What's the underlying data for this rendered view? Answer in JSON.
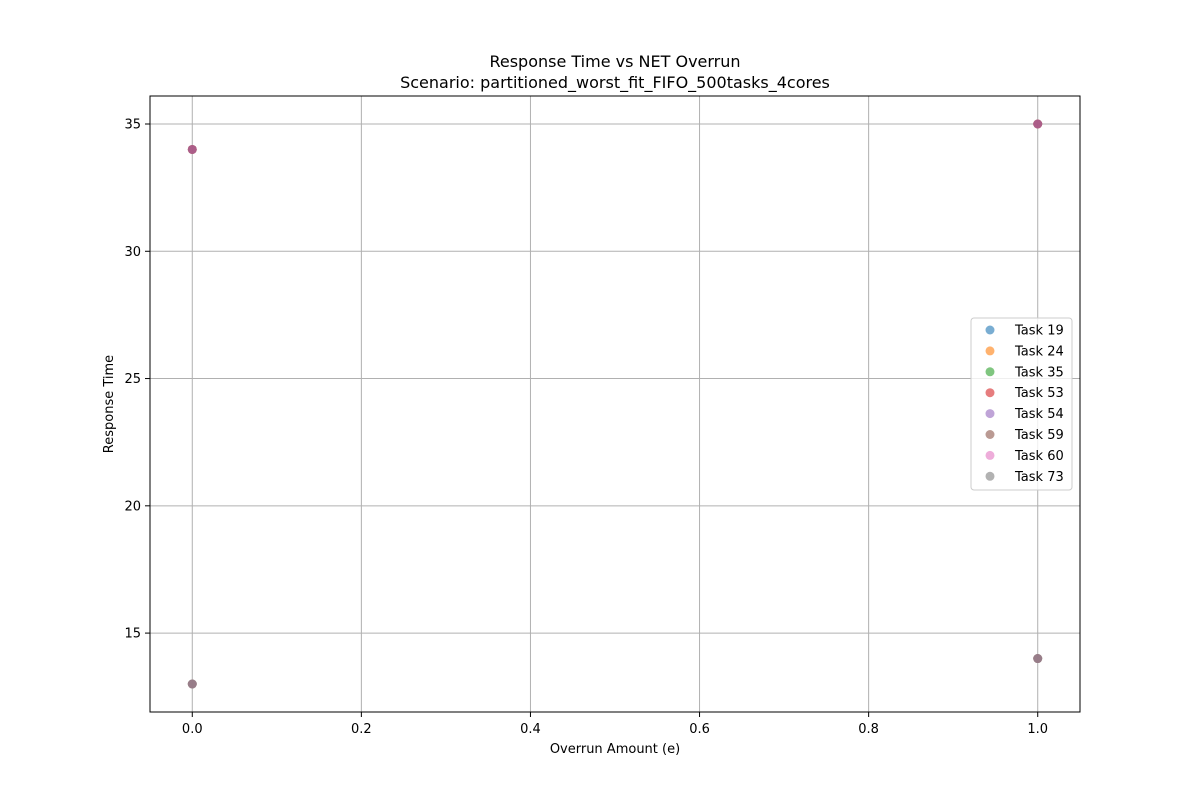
{
  "chart_data": {
    "type": "scatter",
    "title": "Response Time vs NET Overrun",
    "subtitle": "Scenario: partitioned_worst_fit_FIFO_500tasks_4cores",
    "xlabel": "Overrun Amount (e)",
    "ylabel": "Response Time",
    "xlim": [
      -0.05,
      1.05
    ],
    "ylim": [
      11.9,
      36.1
    ],
    "xticks": [
      0.0,
      0.2,
      0.4,
      0.6,
      0.8,
      1.0
    ],
    "xtick_labels": [
      "0.0",
      "0.2",
      "0.4",
      "0.6",
      "0.8",
      "1.0"
    ],
    "yticks": [
      15,
      20,
      25,
      30,
      35
    ],
    "ytick_labels": [
      "15",
      "20",
      "25",
      "30",
      "35"
    ],
    "grid": true,
    "legend_position": "center-right",
    "series": [
      {
        "name": "Task 19",
        "color": "#1f77b4",
        "points": [
          {
            "x": 0.0,
            "y": 34
          },
          {
            "x": 1.0,
            "y": 35
          }
        ]
      },
      {
        "name": "Task 24",
        "color": "#ff7f0e",
        "points": [
          {
            "x": 0.0,
            "y": 34
          },
          {
            "x": 1.0,
            "y": 35
          }
        ]
      },
      {
        "name": "Task 35",
        "color": "#2ca02c",
        "points": [
          {
            "x": 0.0,
            "y": 13
          },
          {
            "x": 1.0,
            "y": 14
          }
        ]
      },
      {
        "name": "Task 53",
        "color": "#d62728",
        "points": [
          {
            "x": 0.0,
            "y": 34
          },
          {
            "x": 1.0,
            "y": 35
          }
        ]
      },
      {
        "name": "Task 54",
        "color": "#9467bd",
        "points": [
          {
            "x": 0.0,
            "y": 34
          },
          {
            "x": 1.0,
            "y": 35
          }
        ]
      },
      {
        "name": "Task 59",
        "color": "#8c564b",
        "points": [
          {
            "x": 0.0,
            "y": 13
          },
          {
            "x": 1.0,
            "y": 14
          }
        ]
      },
      {
        "name": "Task 60",
        "color": "#e377c2",
        "points": [
          {
            "x": 0.0,
            "y": 13
          },
          {
            "x": 1.0,
            "y": 14
          }
        ]
      },
      {
        "name": "Task 73",
        "color": "#7f7f7f",
        "points": [
          {
            "x": 0.0,
            "y": 13
          },
          {
            "x": 1.0,
            "y": 14
          }
        ]
      }
    ]
  }
}
